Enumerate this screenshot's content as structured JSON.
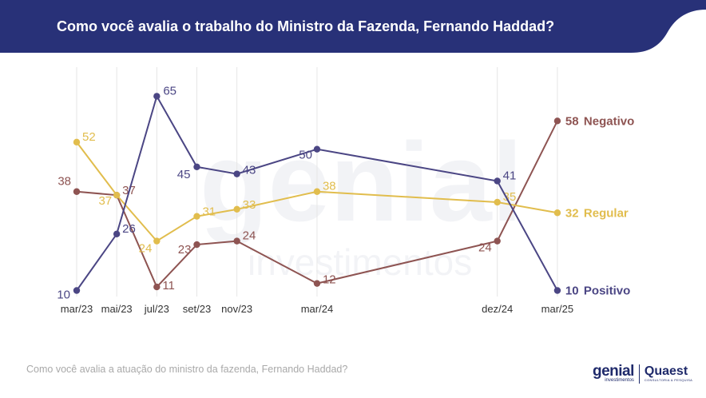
{
  "title": "Como você avalia o trabalho do Ministro da Fazenda, Fernando Haddad?",
  "footnote": "Como você avalia a atuação do ministro da fazenda, Fernando Haddad?",
  "logos": {
    "genial": "genial",
    "genial_sub": "investimentos",
    "quaest": "Quaest",
    "quaest_sub": "CONSULTORIA & PESQUISA"
  },
  "watermark": {
    "line1": "genial",
    "line2": "investimentos"
  },
  "colors": {
    "header": "#283178",
    "negativo": "#8e5452",
    "regular": "#e1bd4d",
    "positivo": "#4b4684",
    "gridline": "#e6e6e6",
    "axis_text": "#333333"
  },
  "chart_data": {
    "type": "line",
    "categories": [
      "mar/23",
      "mai/23",
      "jul/23",
      "set/23",
      "nov/23",
      "mar/24",
      "dez/24",
      "mar/25"
    ],
    "x_months": [
      0,
      2,
      4,
      6,
      8,
      12,
      21,
      24
    ],
    "ylim": [
      5,
      70
    ],
    "grid": "vertical",
    "legend": "right, end of lines",
    "series": [
      {
        "name": "Negativo",
        "color": "#8e5452",
        "values": [
          38,
          37,
          11,
          23,
          24,
          12,
          24,
          58
        ]
      },
      {
        "name": "Regular",
        "color": "#e1bd4d",
        "values": [
          52,
          37,
          24,
          31,
          33,
          38,
          35,
          32
        ]
      },
      {
        "name": "Positivo",
        "color": "#4b4684",
        "values": [
          10,
          26,
          65,
          45,
          43,
          50,
          41,
          10
        ]
      }
    ]
  }
}
